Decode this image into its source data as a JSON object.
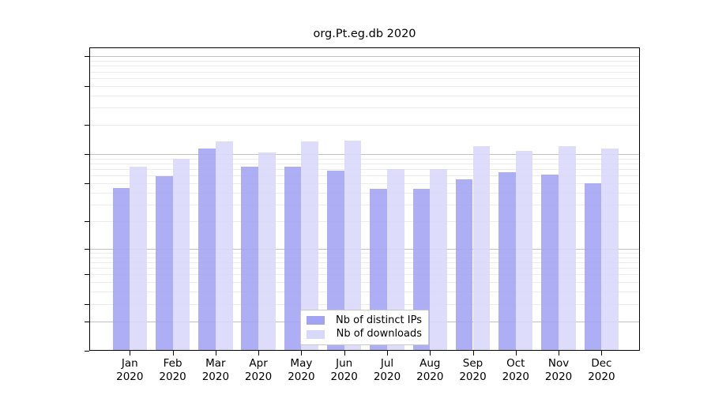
{
  "title": "org.Pt.eg.db 2020",
  "chart_data": {
    "type": "bar",
    "title": "org.Pt.eg.db 2020",
    "categories": [
      "Jan 2020",
      "Feb 2020",
      "Mar 2020",
      "Apr 2020",
      "May 2020",
      "Jun 2020",
      "Jul 2020",
      "Aug 2020",
      "Sep 2020",
      "Oct 2020",
      "Nov 2020",
      "Dec 2020"
    ],
    "series": [
      {
        "name": "Nb of distinct IPs",
        "color": "#a3a3f4",
        "values": [
          45,
          59,
          114,
          74,
          74,
          67,
          44,
          44,
          55,
          65,
          62,
          50
        ]
      },
      {
        "name": "Nb of downloads",
        "color": "#d8d8fa",
        "values": [
          74,
          89,
          135,
          104,
          136,
          139,
          70,
          70,
          120,
          108,
          121,
          114
        ]
      }
    ],
    "xlabel": "",
    "ylabel": "",
    "y_axis": {
      "scale": "log1p",
      "ticks": [
        0,
        1,
        2,
        5,
        10,
        20,
        50,
        100,
        200,
        500,
        1000
      ],
      "major_gridlines": [
        1,
        10,
        100,
        1000
      ],
      "minor_gridline_color": "#ececec",
      "major_gridline_color": "#c0c0c0"
    },
    "ylim": [
      0,
      1000
    ],
    "grid": true,
    "legend_position": "bottom-center",
    "bar_opacity": 0.88,
    "frame_color": "#000000",
    "background_color": "#ffffff"
  },
  "legend": {
    "items": [
      "Nb of distinct IPs",
      "Nb of downloads"
    ]
  }
}
